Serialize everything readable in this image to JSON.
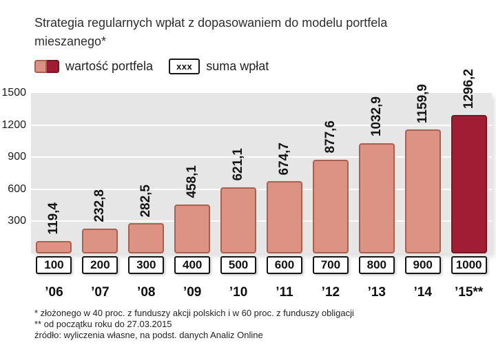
{
  "title": "Strategia regularnych wpłat z dopasowaniem do modelu portfela mieszanego*",
  "legend": {
    "portfolio_label": "wartość portfela",
    "payments_box": "xxx",
    "payments_label": "suma wpłat"
  },
  "chart_data": {
    "type": "bar",
    "categories": [
      "’06",
      "’07",
      "’08",
      "’09",
      "’10",
      "’11",
      "’12",
      "’13",
      "’14",
      "’15**"
    ],
    "values": [
      119.4,
      232.8,
      282.5,
      458.1,
      621.1,
      674.7,
      877.6,
      1032.9,
      1159.9,
      1296.2
    ],
    "value_labels": [
      "119,4",
      "232,8",
      "282,5",
      "458,1",
      "621,1",
      "674,7",
      "877,6",
      "1032,9",
      "1159,9",
      "1296,2"
    ],
    "payments": [
      "100",
      "200",
      "300",
      "400",
      "500",
      "600",
      "700",
      "800",
      "900",
      "1000"
    ],
    "ylim": [
      0,
      1500
    ],
    "yticks": [
      300,
      600,
      900,
      1200,
      1500
    ],
    "grid": true,
    "bar_color": "#dd9384",
    "bar_border": "#a8614f",
    "highlight_index": 9,
    "highlight_color": "#a01d33",
    "highlight_border": "#7a1322",
    "plot_background": "#e7e6e6"
  },
  "footnotes": [
    "* złożonego  w 40 proc. z funduszy akcji polskich i w 60 proc. z funduszy obligacji",
    "** od początku roku do 27.03.2015",
    "źródło: wyliczenia własne, na podst. danych Analiz Online"
  ]
}
